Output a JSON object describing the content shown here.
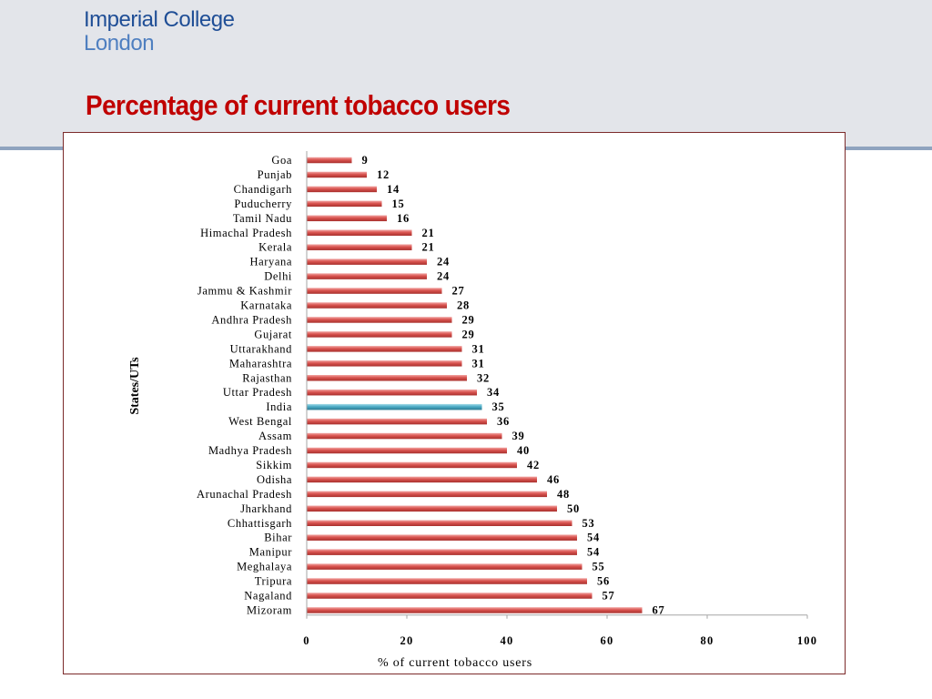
{
  "header": {
    "logo_line1": "Imperial College",
    "logo_line2": "London",
    "title": "Percentage of current tobacco users"
  },
  "colors": {
    "bar": "#d9534f",
    "bar_highlight": "#4bacc6",
    "title": "#c00000",
    "logo": "#1f4e96"
  },
  "chart_data": {
    "type": "bar",
    "orientation": "horizontal",
    "xlabel": "% of current tobacco users",
    "ylabel": "States/UTs",
    "xlim": [
      0,
      100
    ],
    "xticks": [
      "0",
      "20",
      "40",
      "60",
      "80",
      "100"
    ],
    "grid": false,
    "legend": "none",
    "highlight_category": "India",
    "categories": [
      "Goa",
      "Punjab",
      "Chandigarh",
      "Puducherry",
      "Tamil Nadu",
      "Himachal Pradesh",
      "Kerala",
      "Haryana",
      "Delhi",
      "Jammu & Kashmir",
      "Karnataka",
      "Andhra Pradesh",
      "Gujarat",
      "Uttarakhand",
      "Maharashtra",
      "Rajasthan",
      "Uttar Pradesh",
      "India",
      "West Bengal",
      "Assam",
      "Madhya Pradesh",
      "Sikkim",
      "Odisha",
      "Arunachal Pradesh",
      "Jharkhand",
      "Chhattisgarh",
      "Bihar",
      "Manipur",
      "Meghalaya",
      "Tripura",
      "Nagaland",
      "Mizoram"
    ],
    "values": [
      9,
      12,
      14,
      15,
      16,
      21,
      21,
      24,
      24,
      27,
      28,
      29,
      29,
      31,
      31,
      32,
      34,
      35,
      36,
      39,
      40,
      42,
      46,
      48,
      50,
      53,
      54,
      54,
      55,
      56,
      57,
      67
    ]
  }
}
